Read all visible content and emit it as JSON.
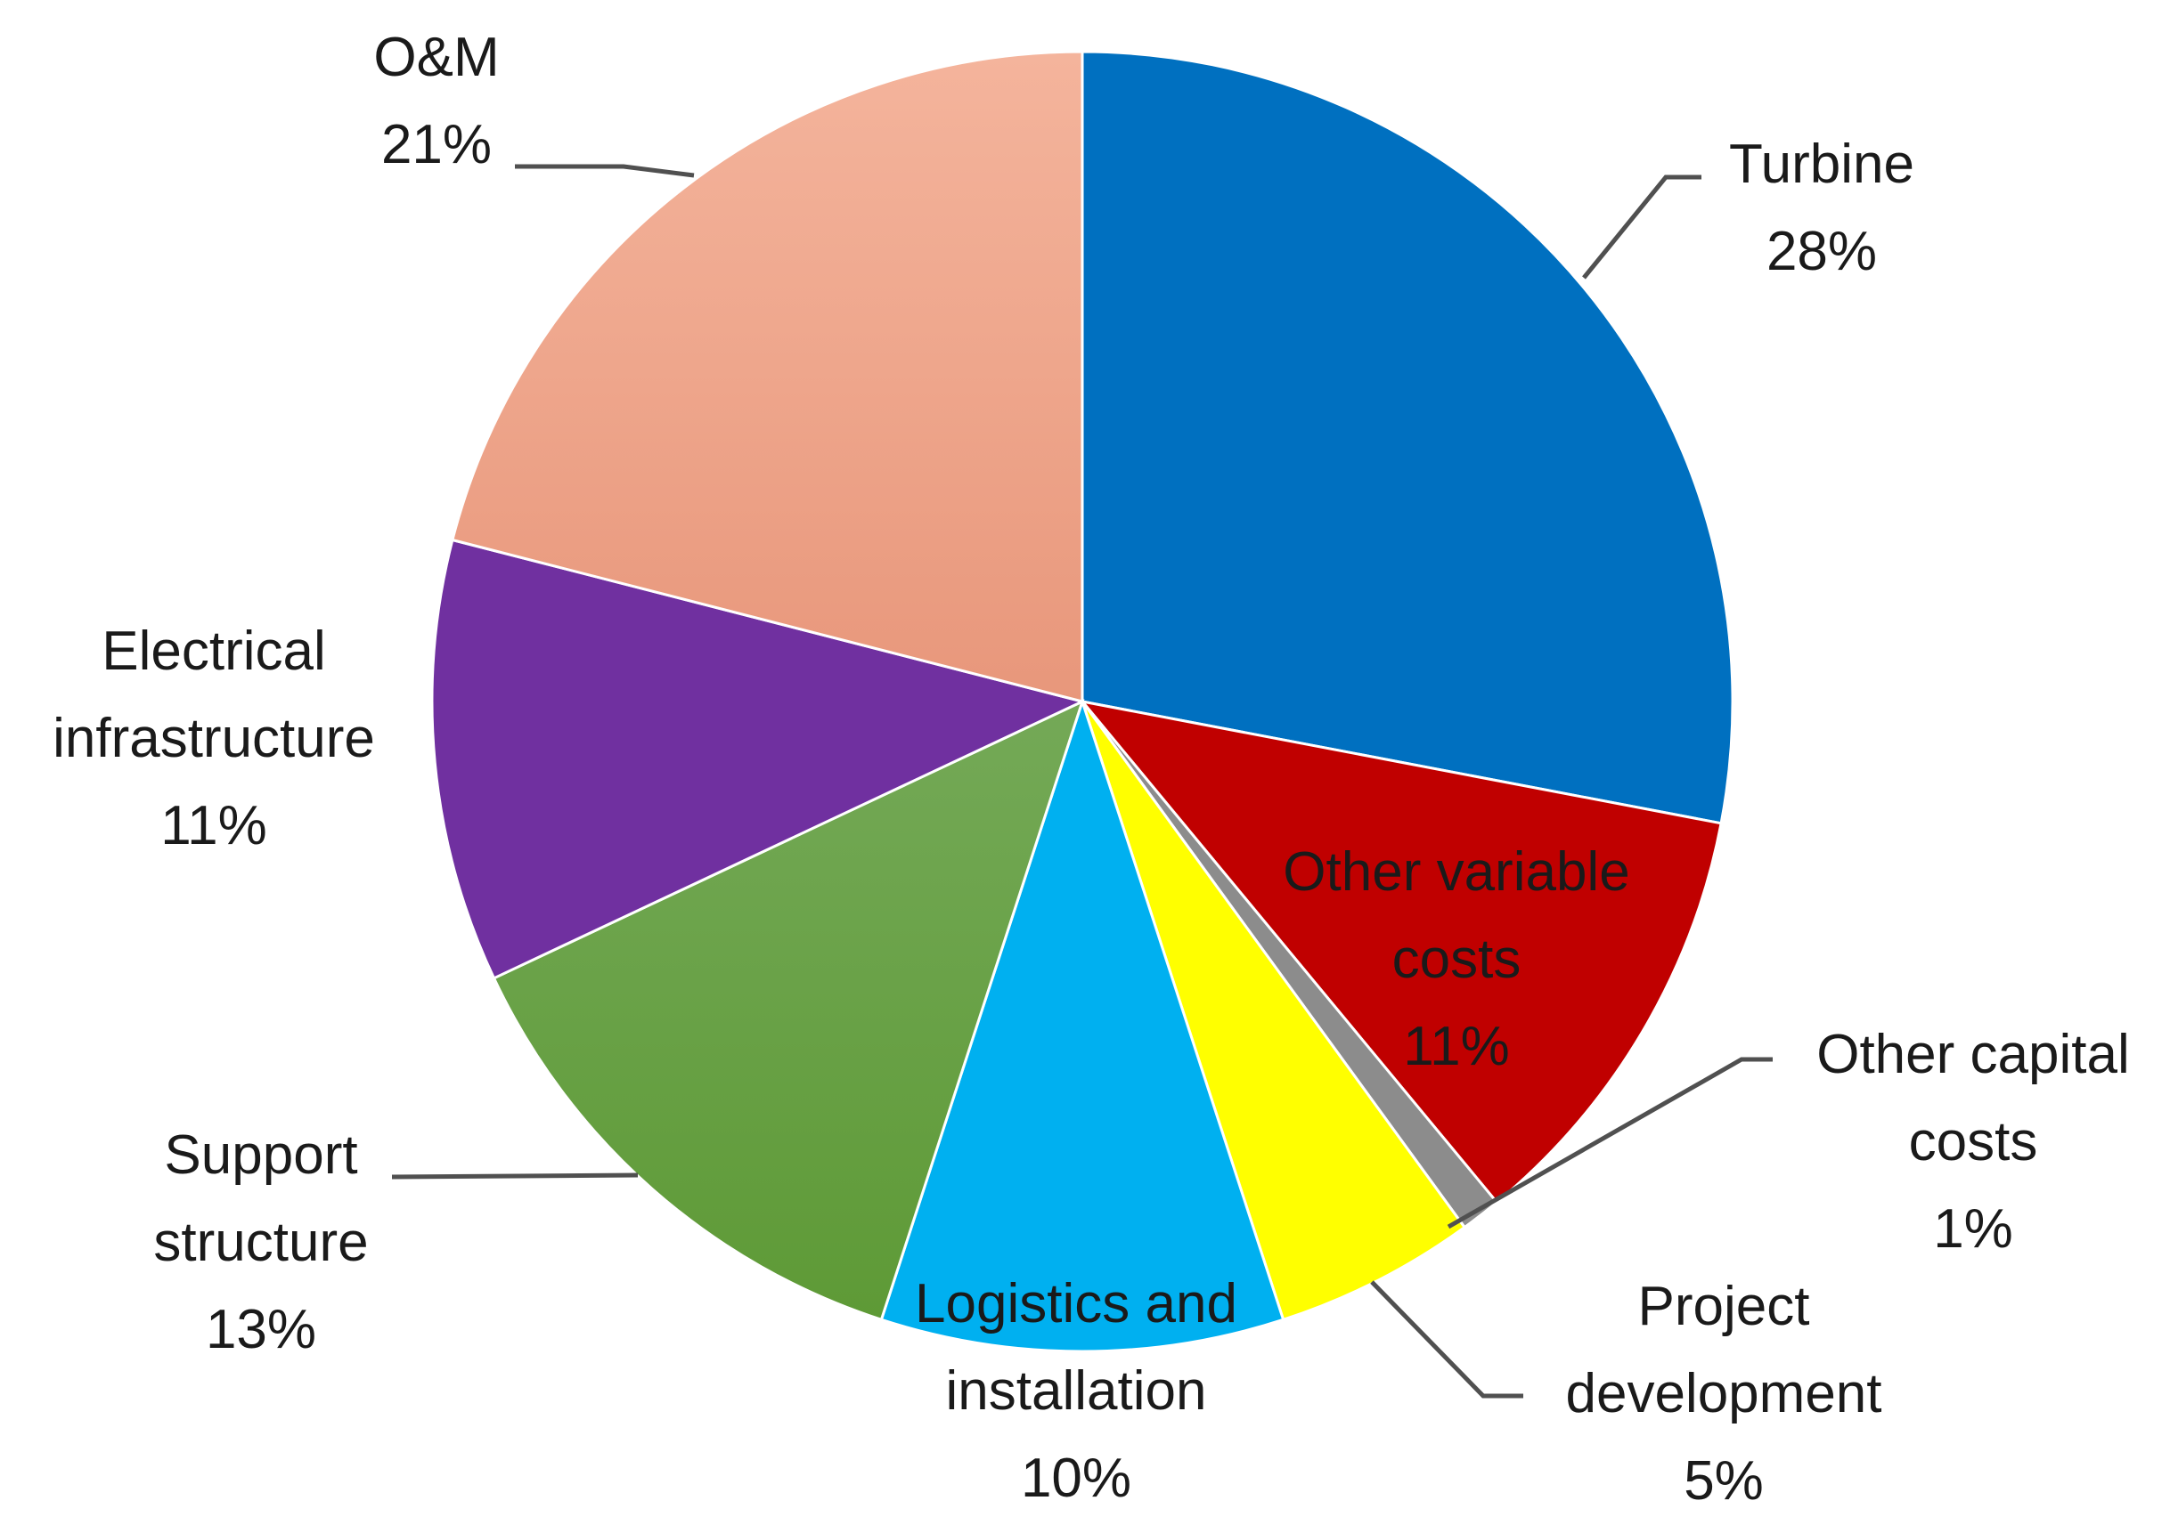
{
  "chart_data": {
    "type": "pie",
    "start_angle_deg": 0,
    "direction": "clockwise",
    "slices": [
      {
        "key": "turbine",
        "label_lines": [
          "Turbine",
          "28%"
        ],
        "value": 28,
        "color": "#0070C0"
      },
      {
        "key": "other-variable-costs",
        "label_lines": [
          "Other variable",
          "costs",
          "11%"
        ],
        "value": 11,
        "color": "#C00000"
      },
      {
        "key": "other-capital-costs",
        "label_lines": [
          "Other capital",
          "costs",
          "1%"
        ],
        "value": 1,
        "color": "#8C8C8C"
      },
      {
        "key": "project-development",
        "label_lines": [
          "Project",
          "development",
          "5%"
        ],
        "value": 5,
        "color": "#FFFF00"
      },
      {
        "key": "logistics-and-installation",
        "label_lines": [
          "Logistics and",
          "installation",
          "10%"
        ],
        "value": 10,
        "color": "#00B0F0"
      },
      {
        "key": "support-structure",
        "label_lines": [
          "Support",
          "structure",
          "13%"
        ],
        "value": 13,
        "color": "#6AA84F"
      },
      {
        "key": "electrical-infrastructure",
        "label_lines": [
          "Electrical",
          "infrastructure",
          "11%"
        ],
        "value": 11,
        "color": "#7030A0"
      },
      {
        "key": "om",
        "label_lines": [
          "O&M",
          "21%"
        ],
        "value": 21,
        "color": "#F2A58A"
      }
    ]
  }
}
